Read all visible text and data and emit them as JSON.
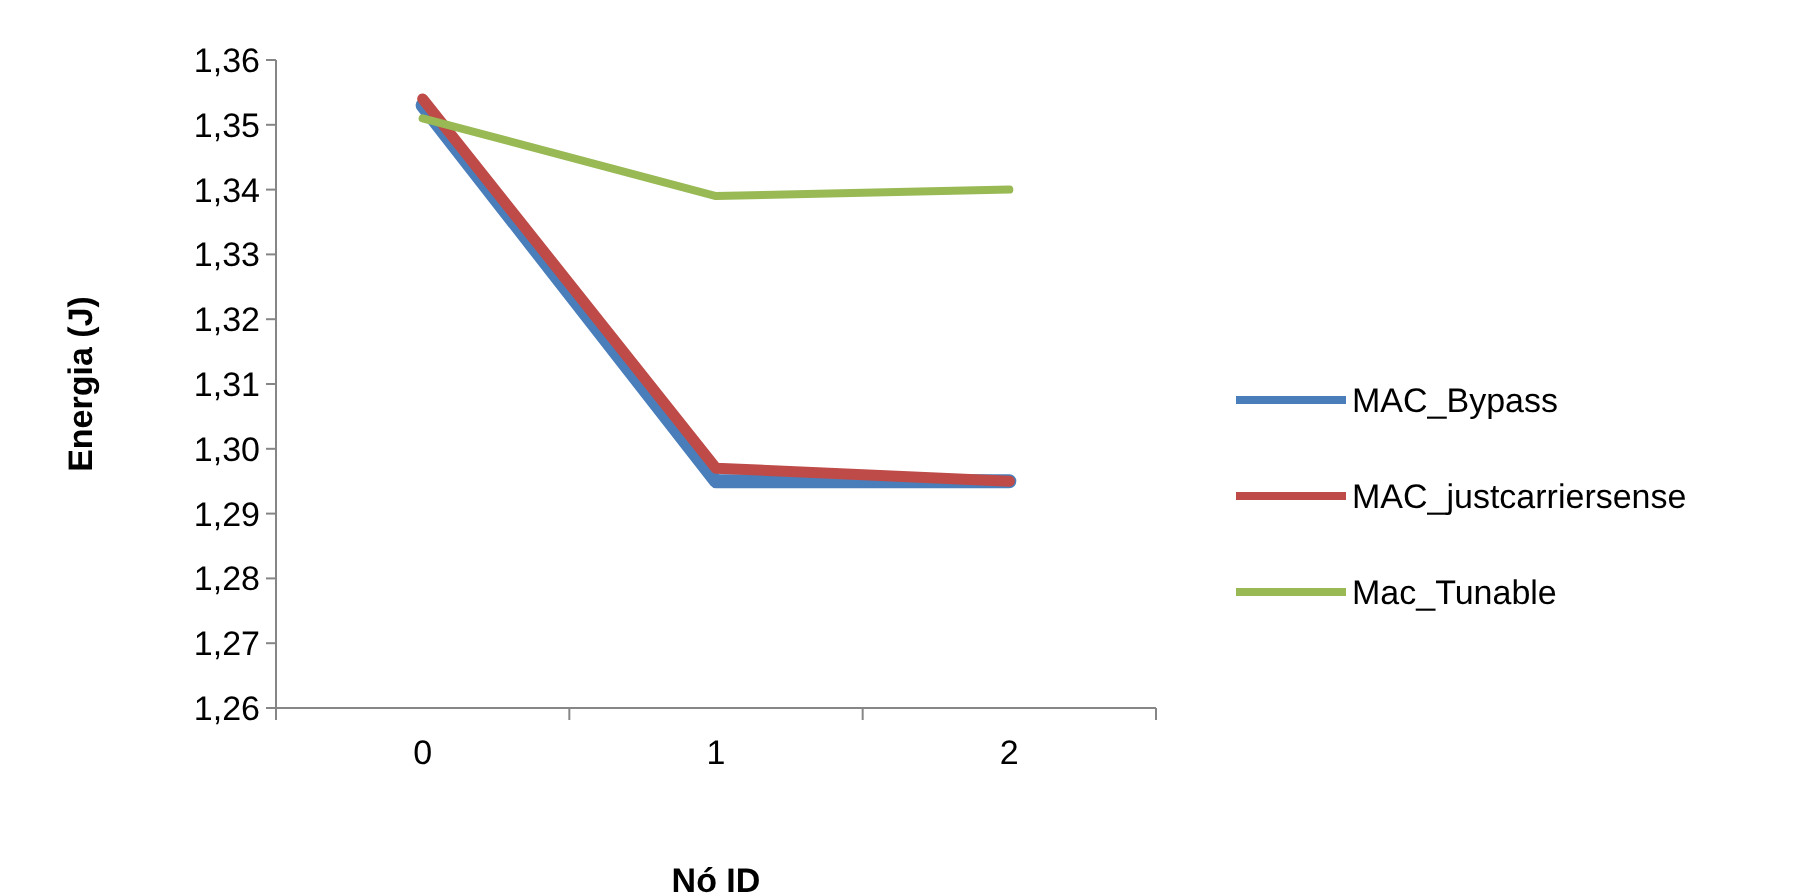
{
  "chart_data": {
    "type": "line",
    "xlabel": "Nó ID",
    "ylabel": "Energia (J)",
    "categories": [
      "0",
      "1",
      "2"
    ],
    "series": [
      {
        "name": "MAC_Bypass",
        "color": "#4a7ebb",
        "values": [
          1.353,
          1.295,
          1.295
        ]
      },
      {
        "name": "MAC_justcarriersense",
        "color": "#be4b48",
        "values": [
          1.354,
          1.297,
          1.295
        ]
      },
      {
        "name": "Mac_Tunable",
        "color": "#98b954",
        "values": [
          1.351,
          1.339,
          1.34
        ]
      }
    ],
    "ylim": [
      1.26,
      1.36
    ],
    "yticks": [
      {
        "value": 1.26,
        "label": "1,26"
      },
      {
        "value": 1.27,
        "label": "1,27"
      },
      {
        "value": 1.28,
        "label": "1,28"
      },
      {
        "value": 1.29,
        "label": "1,29"
      },
      {
        "value": 1.3,
        "label": "1,30"
      },
      {
        "value": 1.31,
        "label": "1,31"
      },
      {
        "value": 1.32,
        "label": "1,32"
      },
      {
        "value": 1.33,
        "label": "1,33"
      },
      {
        "value": 1.34,
        "label": "1,34"
      },
      {
        "value": 1.35,
        "label": "1,35"
      },
      {
        "value": 1.36,
        "label": "1,36"
      }
    ],
    "grid": false,
    "legend": "right",
    "marker": "none",
    "line_style": "solid"
  }
}
